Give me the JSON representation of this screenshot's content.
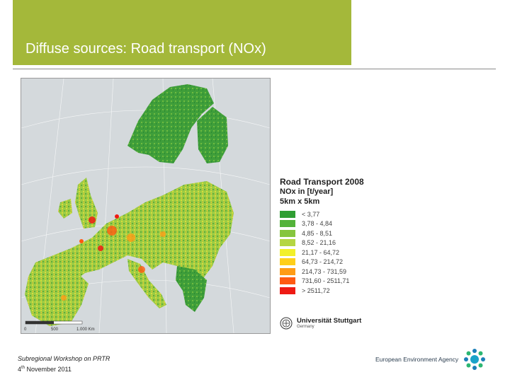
{
  "slide": {
    "title": "Diffuse sources: Road transport (NOx)"
  },
  "map": {
    "scale_label_mid": "500",
    "scale_label_end": "1.000 Km",
    "colors": {
      "sea": "#d4d9dc",
      "land_low": "#3c9a3c",
      "land_high": "#ff2a0a"
    }
  },
  "legend": {
    "title": "Road Transport 2008",
    "subtitle": "NOx in [t/year]",
    "resolution": "5km x 5km",
    "classes": [
      {
        "label": "< 3,77",
        "color": "#2f9e33"
      },
      {
        "label": "3,78 - 4,84",
        "color": "#53b33a"
      },
      {
        "label": "4,85 - 8,51",
        "color": "#86c53f"
      },
      {
        "label": "8,52 - 21,16",
        "color": "#b5d643"
      },
      {
        "label": "21,17 - 64,72",
        "color": "#f2f02a"
      },
      {
        "label": "64,73 - 214,72",
        "color": "#ffcf1a"
      },
      {
        "label": "214,73 - 731,59",
        "color": "#ff9c16"
      },
      {
        "label": "731,60 - 2511,71",
        "color": "#ff5a12"
      },
      {
        "label": "> 2511,72",
        "color": "#ee1a14"
      }
    ]
  },
  "credit": {
    "name": "Universität Stuttgart",
    "country": "Germany",
    "seal_icon": "university-seal-icon"
  },
  "footer": {
    "line1": "Subregional Workshop on PRTR",
    "day": "4",
    "day_suffix": "th",
    "rest": " November 2011"
  },
  "eea": {
    "name": "European Environment Agency",
    "logo_icon": "eea-star-logo-icon"
  }
}
